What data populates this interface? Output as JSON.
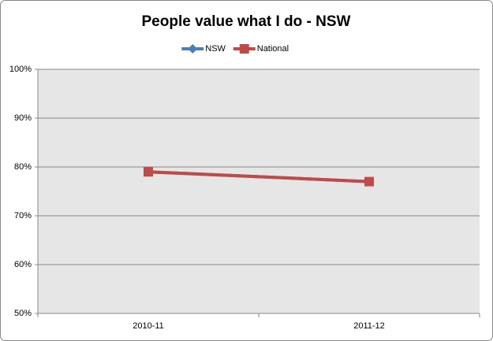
{
  "chart_data": {
    "type": "line",
    "title": "People value what I do - NSW",
    "categories": [
      "2010-11",
      "2011-12"
    ],
    "series": [
      {
        "name": "NSW",
        "color": "#4a7ebb",
        "marker": "diamond",
        "values": [
          79,
          77
        ]
      },
      {
        "name": "National",
        "color": "#be4b48",
        "marker": "square",
        "values": [
          79,
          77
        ]
      }
    ],
    "ylim": [
      50,
      100
    ],
    "yticks": [
      {
        "value": 50,
        "label": "50%"
      },
      {
        "value": 60,
        "label": "60%"
      },
      {
        "value": 70,
        "label": "70%"
      },
      {
        "value": 80,
        "label": "80%"
      },
      {
        "value": 90,
        "label": "90%"
      },
      {
        "value": 100,
        "label": "100%"
      }
    ],
    "grid": true,
    "legend": "top"
  }
}
